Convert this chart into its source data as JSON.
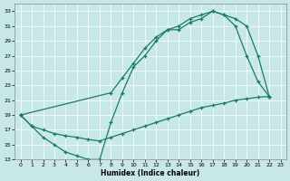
{
  "xlabel": "Humidex (Indice chaleur)",
  "bg_color": "#c8e8e8",
  "line_color": "#1a7a6a",
  "grid_color": "#b0d0d0",
  "xlim": [
    -0.5,
    23.5
  ],
  "ylim": [
    13,
    34
  ],
  "xticks": [
    0,
    1,
    2,
    3,
    4,
    5,
    6,
    7,
    8,
    9,
    10,
    11,
    12,
    13,
    14,
    15,
    16,
    17,
    18,
    19,
    20,
    21,
    22,
    23
  ],
  "yticks": [
    13,
    15,
    17,
    19,
    21,
    23,
    25,
    27,
    29,
    31,
    33
  ],
  "curve1_x": [
    0,
    1,
    2,
    3,
    4,
    5,
    6,
    7,
    8,
    9,
    10,
    11,
    12,
    13,
    14,
    15,
    16,
    17,
    18,
    19,
    20,
    21,
    22
  ],
  "curve1_y": [
    19,
    17.5,
    16,
    15,
    14,
    13.5,
    13,
    13,
    18,
    22,
    25.5,
    27,
    29,
    30.5,
    30.5,
    31.5,
    32,
    33,
    32.5,
    31,
    27,
    23.5,
    21.5
  ],
  "curve2_x": [
    0,
    1,
    2,
    3,
    4,
    5,
    6,
    7,
    8,
    9,
    10,
    11,
    12,
    13,
    14,
    15,
    16,
    17,
    18,
    19,
    20,
    21,
    22
  ],
  "curve2_y": [
    19,
    17.5,
    17.0,
    16.5,
    16.2,
    16.0,
    15.7,
    15.5,
    16.0,
    16.5,
    17.0,
    17.5,
    18.0,
    18.5,
    19.0,
    19.5,
    20.0,
    20.3,
    20.6,
    21.0,
    21.2,
    21.4,
    21.5
  ],
  "curve3_x": [
    0,
    8,
    9,
    10,
    11,
    12,
    13,
    14,
    15,
    16,
    17,
    18,
    19,
    20,
    21,
    22
  ],
  "curve3_y": [
    19,
    22,
    24,
    26,
    28,
    29.5,
    30.5,
    31,
    32,
    32.5,
    33,
    32.5,
    32,
    31,
    27,
    21.5
  ]
}
